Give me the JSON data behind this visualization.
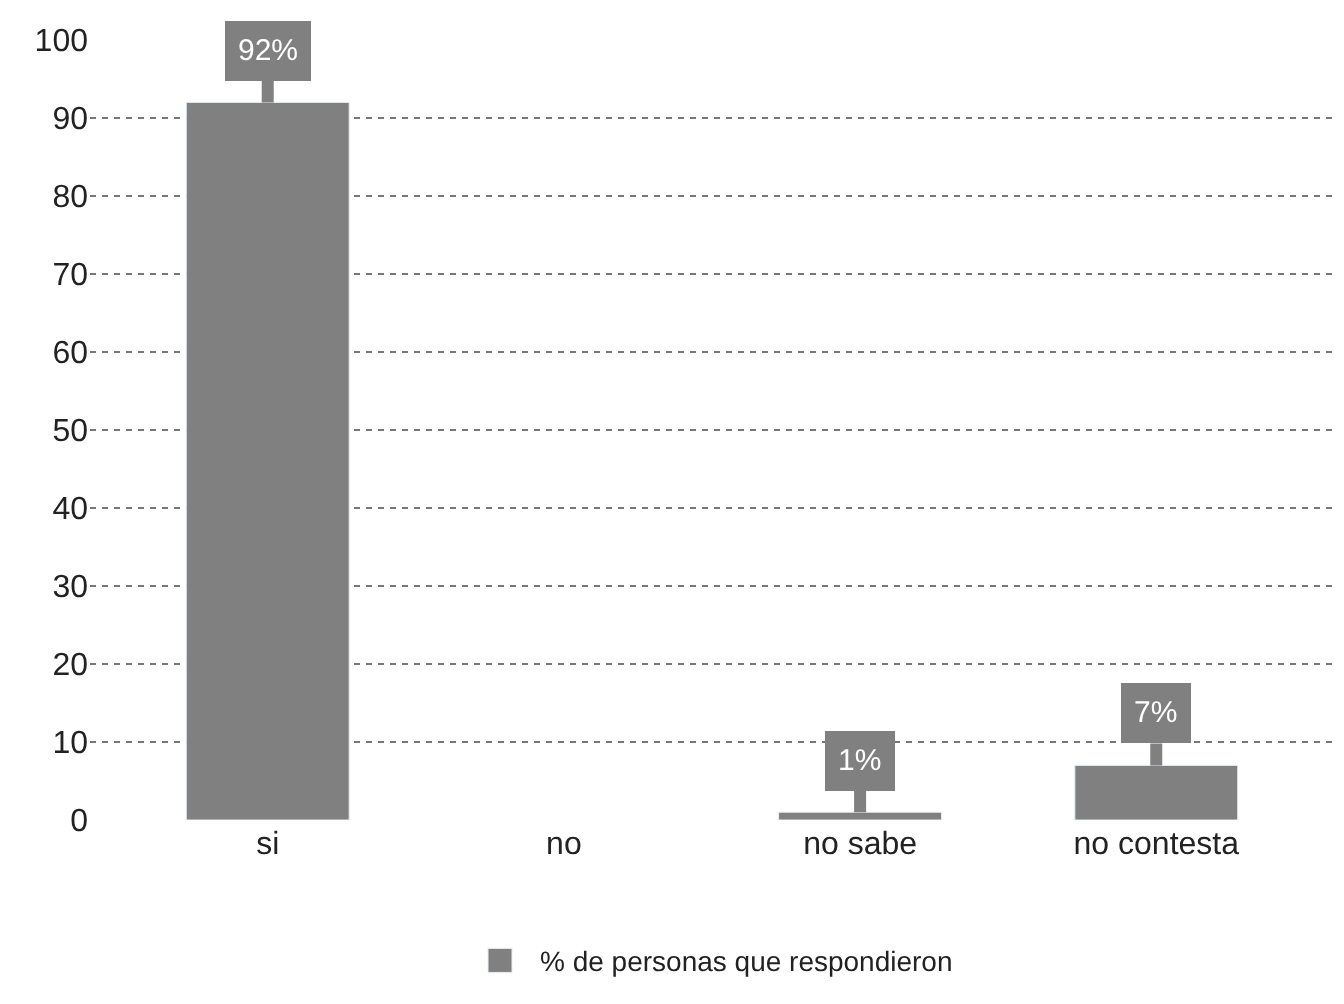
{
  "chart_data": {
    "type": "bar",
    "categories": [
      "si",
      "no",
      "no sabe",
      "no contesta"
    ],
    "series": [
      {
        "name": "% de personas que respondieron",
        "color": "#808080",
        "values": [
          92,
          null,
          1,
          7
        ],
        "value_labels": [
          "92%",
          null,
          "1%",
          "7%"
        ]
      }
    ],
    "ylim": [
      0,
      100
    ],
    "yticks": [
      0,
      10,
      20,
      30,
      40,
      50,
      60,
      70,
      80,
      90,
      100
    ],
    "grid": "y",
    "legend": "bottom"
  }
}
